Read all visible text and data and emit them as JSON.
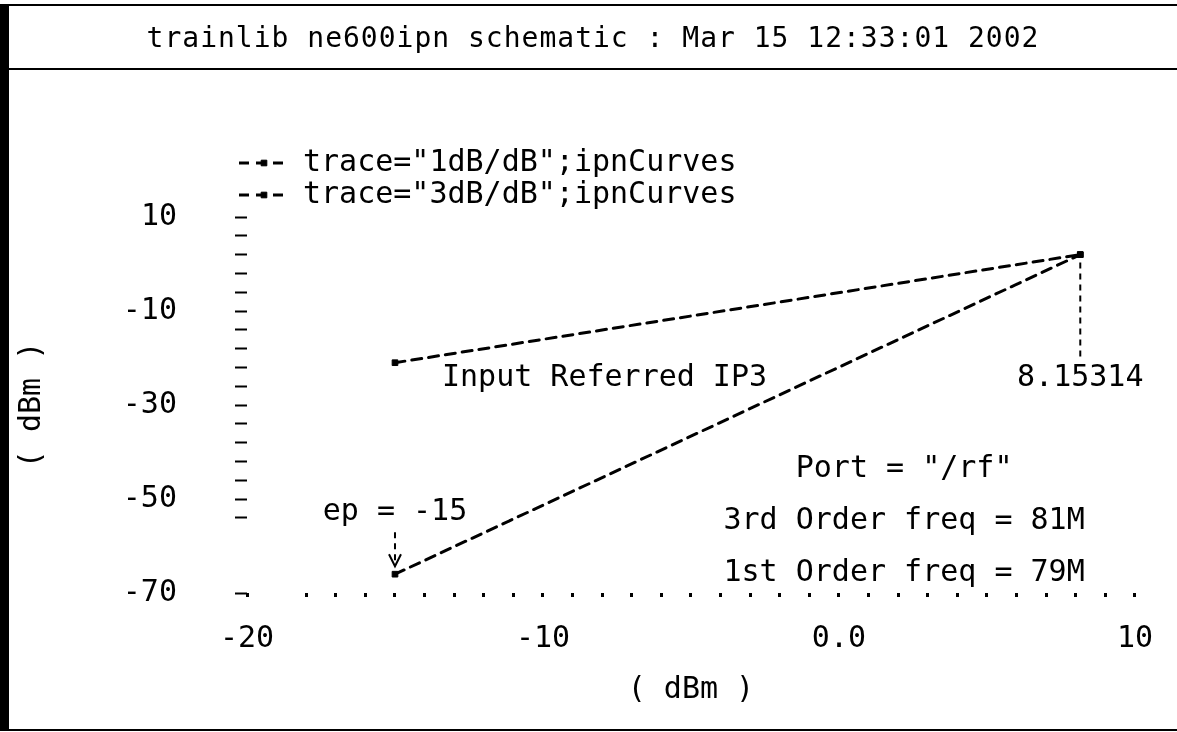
{
  "chart_data": {
    "type": "line",
    "title": "trainlib ne600ipn schematic : Mar 15 12:33:01 2002",
    "xlabel": "( dBm )",
    "ylabel": "( dBm )",
    "x": [
      -15,
      8.15314
    ],
    "series": [
      {
        "name": "trace=\"1dB/dB\";ipnCurves",
        "color": "#000000",
        "values": [
          -21,
          2
        ]
      },
      {
        "name": "trace=\"3dB/dB\";ipnCurves",
        "color": "#000000",
        "values": [
          -66,
          2
        ]
      }
    ],
    "xlim": [
      -20,
      10
    ],
    "xticks": [
      -20,
      {
        "value": -18,
        "label": null
      },
      {
        "value": -17,
        "label": null
      },
      {
        "value": -16,
        "label": null
      },
      {
        "value": -15,
        "label": null
      },
      {
        "value": -14,
        "label": null
      },
      {
        "value": -13,
        "label": null
      },
      {
        "value": -12,
        "label": null
      },
      {
        "value": -11,
        "label": null
      },
      -10,
      {
        "value": -9,
        "label": null
      },
      {
        "value": -8,
        "label": null
      },
      {
        "value": -7,
        "label": null
      },
      {
        "value": -6,
        "label": null
      },
      {
        "value": -5,
        "label": null
      },
      {
        "value": -4,
        "label": null
      },
      {
        "value": -3,
        "label": null
      },
      {
        "value": -2,
        "label": null
      },
      {
        "value": -1,
        "label": null
      },
      {
        "value": 0,
        "label": "0.0"
      },
      {
        "value": 1,
        "label": null
      },
      {
        "value": 2,
        "label": null
      },
      {
        "value": 3,
        "label": null
      },
      {
        "value": 4,
        "label": null
      },
      {
        "value": 5,
        "label": null
      },
      {
        "value": 6,
        "label": null
      },
      {
        "value": 7,
        "label": null
      },
      {
        "value": 8,
        "label": null
      },
      {
        "value": 9,
        "label": null
      },
      10
    ],
    "ylim": [
      -70,
      10
    ],
    "yticks": [
      10,
      {
        "value": 6,
        "label": null
      },
      {
        "value": 2,
        "label": null
      },
      {
        "value": -2,
        "label": null
      },
      {
        "value": -6,
        "label": null
      },
      -10,
      {
        "value": -14,
        "label": null
      },
      {
        "value": -18,
        "label": null
      },
      {
        "value": -22,
        "label": null
      },
      {
        "value": -26,
        "label": null
      },
      -30,
      {
        "value": -34,
        "label": null
      },
      {
        "value": -38,
        "label": null
      },
      {
        "value": -42,
        "label": null
      },
      {
        "value": -46,
        "label": null
      },
      -50,
      {
        "value": -54,
        "label": null
      },
      -70
    ],
    "legend": "top left",
    "line_style": "dashed",
    "marker": "square",
    "annotations": [
      "Input Referred IP3",
      {
        "text": "8.15314",
        "x": 8.15314,
        "y": 2
      },
      {
        "text": "ep = -15",
        "x": -15,
        "y": -66
      },
      "Port = \"/rf\"",
      "3rd Order freq = 81M",
      "1st Order freq = 79M"
    ]
  }
}
